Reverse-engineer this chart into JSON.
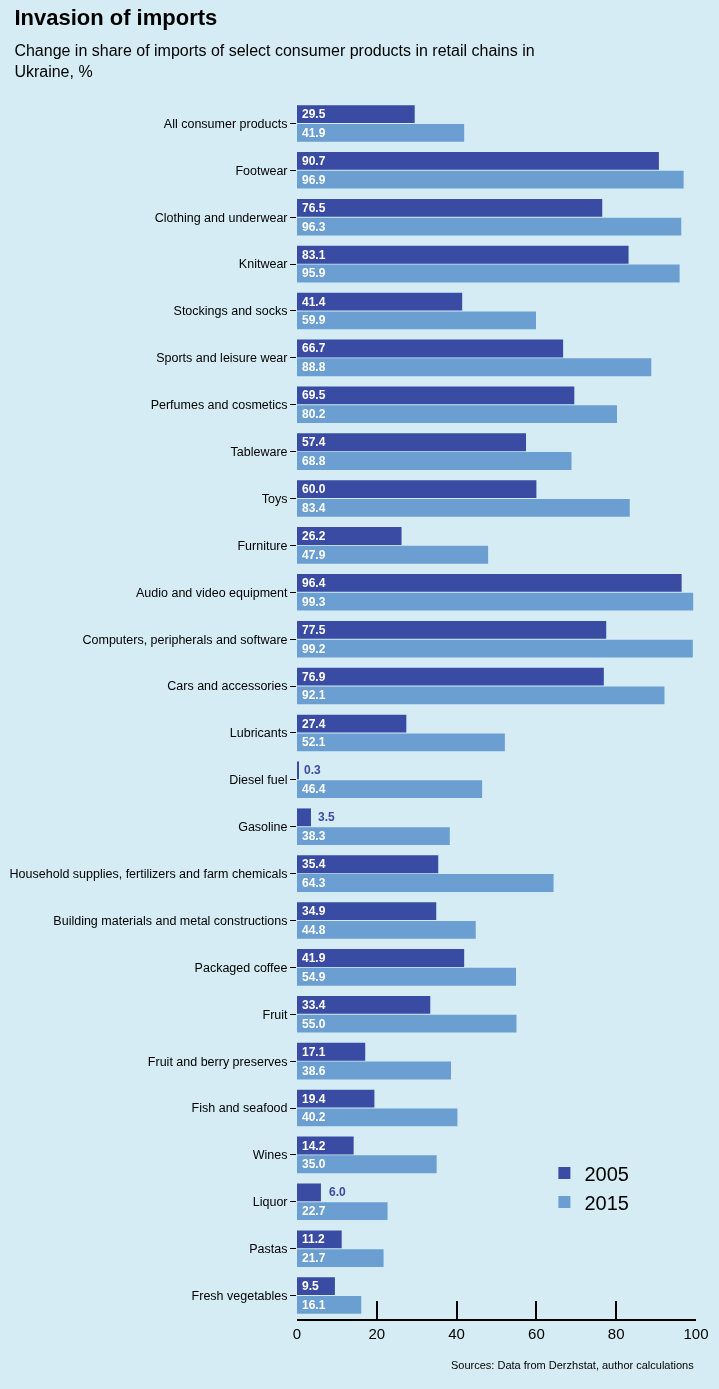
{
  "chart_data": {
    "type": "bar",
    "orientation": "horizontal",
    "title": "Invasion of imports",
    "subtitle": "Change in share of imports of select consumer products in retail chains in Ukraine, %",
    "categories": [
      "All consumer products",
      "Footwear",
      "Clothing and underwear",
      "Knitwear",
      "Stockings and socks",
      "Sports and leisure wear",
      "Perfumes and cosmetics",
      "Tableware",
      "Toys",
      "Furniture",
      "Audio and video equipment",
      "Computers, peripherals and software",
      "Cars and accessories",
      "Lubricants",
      "Diesel fuel",
      "Gasoline",
      "Household supplies, fertilizers and farm chemicals",
      "Building materials and metal constructions",
      "Packaged coffee",
      "Fruit",
      "Fruit and berry preserves",
      "Fish and seafood",
      "Wines",
      "Liquor",
      "Pastas",
      "Fresh vegetables"
    ],
    "series": [
      {
        "name": "2005",
        "color": "#3a4ba3",
        "values": [
          29.5,
          90.7,
          76.5,
          83.1,
          41.4,
          66.7,
          69.5,
          57.4,
          60.0,
          26.2,
          96.4,
          77.5,
          76.9,
          27.4,
          0.3,
          3.5,
          35.4,
          34.9,
          41.9,
          33.4,
          17.1,
          19.4,
          14.2,
          6.0,
          11.2,
          9.5
        ],
        "value_labels": [
          "29.5",
          "90.7",
          "76.5",
          "83.1",
          "41.4",
          "66.7",
          "69.5",
          "57.4",
          "60.0",
          "26.2",
          "96.4",
          "77.5",
          "76.9",
          "27.4",
          "0.3",
          "3.5",
          "35.4",
          "34.9",
          "41.9",
          "33.4",
          "17.1",
          "19.4",
          "14.2",
          "6.0",
          "11.2",
          "9.5"
        ]
      },
      {
        "name": "2015",
        "color": "#6b9fd2",
        "values": [
          41.9,
          96.9,
          96.3,
          95.9,
          59.9,
          88.8,
          80.2,
          68.8,
          83.4,
          47.9,
          99.3,
          99.2,
          92.1,
          52.1,
          46.4,
          38.3,
          64.3,
          44.8,
          54.9,
          55.0,
          38.6,
          40.2,
          35.0,
          22.7,
          21.7,
          16.1
        ],
        "value_labels": [
          "41.9",
          "96.9",
          "96.3",
          "95.9",
          "59.9",
          "88.8",
          "80.2",
          "68.8",
          "83.4",
          "47.9",
          "99.3",
          "99.2",
          "92.1",
          "52.1",
          "46.4",
          "38.3",
          "64.3",
          "44.8",
          "54.9",
          "55.0",
          "38.6",
          "40.2",
          "35.0",
          "22.7",
          "21.7",
          "16.1"
        ]
      }
    ],
    "xlim": [
      0,
      100
    ],
    "xticks": [
      0,
      20,
      40,
      60,
      80,
      100
    ],
    "grid": false,
    "legend": "bottom right",
    "annotations": [
      "Sources: Data from Derzhstat, author calculations"
    ]
  }
}
